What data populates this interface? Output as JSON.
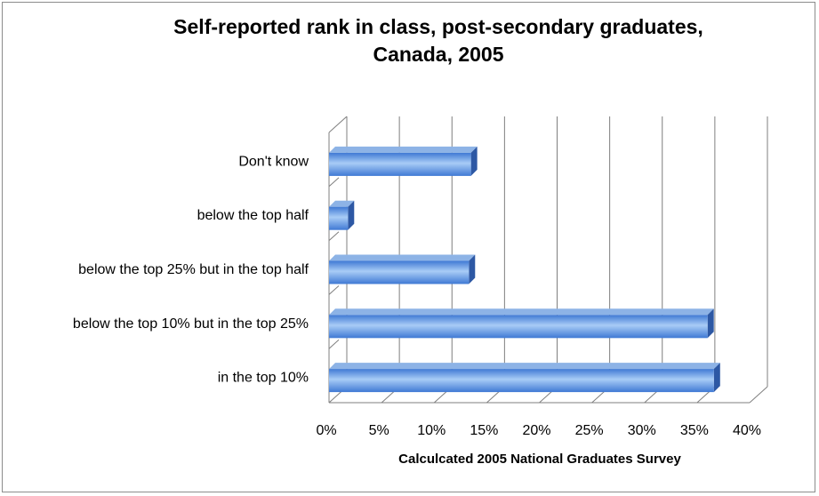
{
  "chart_data": {
    "type": "bar",
    "orientation": "horizontal",
    "style": "3d",
    "title_lines": [
      "Self-reported rank in class, post-secondary graduates,",
      "Canada, 2005"
    ],
    "xlabel": "Calculcated 2005 National Graduates Survey",
    "ylabel": "",
    "categories": [
      "in the top 10%",
      "below the top 10% but in the top 25%",
      "below the top 25% but in the top half",
      "below the top half",
      "Don't know"
    ],
    "values": [
      36.6,
      36.0,
      13.3,
      1.8,
      13.5
    ],
    "xlim": [
      0,
      40
    ],
    "xticks": [
      0,
      5,
      10,
      15,
      20,
      25,
      30,
      35,
      40
    ],
    "xtick_labels": [
      "0%",
      "5%",
      "10%",
      "15%",
      "20%",
      "25%",
      "30%",
      "35%",
      "40%"
    ],
    "grid": true,
    "legend": "none",
    "colors": {
      "bar_front_light": "#a8ccf6",
      "bar_front_dark": "#3f79d4",
      "bar_top": "#8db3e6",
      "bar_side": "#2d58a4",
      "grid": "#7f7f7f"
    }
  }
}
